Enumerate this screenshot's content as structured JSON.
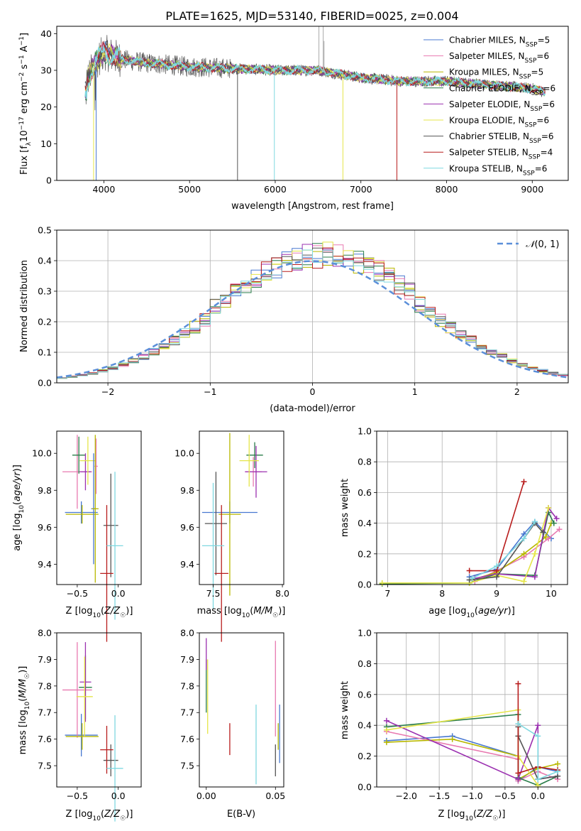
{
  "figure": {
    "title": "PLATE=1625, MJD=53140, FIBERID=0025, z=0.004"
  },
  "colors": {
    "chabrier_miles": "#4878d0",
    "salpeter_miles": "#e879b0",
    "kroupa_miles": "#b8b800",
    "chabrier_elodie": "#2a7d4a",
    "salpeter_elodie": "#9b30b0",
    "kroupa_elodie": "#e5e549",
    "chabrier_stelib": "#555555",
    "salpeter_stelib": "#b81c1c",
    "kroupa_stelib": "#7fd8e0",
    "normal_curve": "#5b8fd9"
  },
  "chart_data": [
    {
      "id": "spectrum",
      "type": "line",
      "xlabel": "wavelength [Angstrom, rest frame]",
      "ylabel": "Flux [f_λ 10^-17 erg cm^-2 s^-1 A^-1]",
      "xlim": [
        3450,
        9420
      ],
      "ylim": [
        0,
        42
      ],
      "xticks": [
        4000,
        5000,
        6000,
        7000,
        8000,
        9000
      ],
      "yticks": [
        0,
        10,
        20,
        30,
        40
      ],
      "grid": false,
      "legend_position": "top-right",
      "series": [
        {
          "name": "Chabrier MILES, N",
          "sub": "SSP",
          "suffix": "=5",
          "color_key": "chabrier_miles"
        },
        {
          "name": "Salpeter MILES, N",
          "sub": "SSP",
          "suffix": "=6",
          "color_key": "salpeter_miles"
        },
        {
          "name": "Kroupa MILES, N",
          "sub": "SSP",
          "suffix": "=5",
          "color_key": "kroupa_miles"
        },
        {
          "name": "Chabrier ELODIE, N",
          "sub": "SSP",
          "suffix": "=6",
          "color_key": "chabrier_elodie"
        },
        {
          "name": "Salpeter ELODIE, N",
          "sub": "SSP",
          "suffix": "=6",
          "color_key": "salpeter_elodie"
        },
        {
          "name": "Kroupa ELODIE, N",
          "sub": "SSP",
          "suffix": "=6",
          "color_key": "kroupa_elodie"
        },
        {
          "name": "Chabrier STELIB, N",
          "sub": "SSP",
          "suffix": "=6",
          "color_key": "chabrier_stelib"
        },
        {
          "name": "Salpeter STELIB, N",
          "sub": "SSP",
          "suffix": "=4",
          "color_key": "salpeter_stelib"
        },
        {
          "name": "Kroupa STELIB, N",
          "sub": "SSP",
          "suffix": "=6",
          "color_key": "kroupa_stelib"
        }
      ],
      "continuum": [
        [
          3800,
          27
        ],
        [
          3900,
          32
        ],
        [
          4000,
          35
        ],
        [
          4200,
          33
        ],
        [
          4500,
          32
        ],
        [
          5000,
          31
        ],
        [
          5500,
          30.5
        ],
        [
          6000,
          30
        ],
        [
          6500,
          30
        ],
        [
          7000,
          28
        ],
        [
          7500,
          27
        ],
        [
          8000,
          27
        ],
        [
          8500,
          26
        ],
        [
          9000,
          25
        ],
        [
          9150,
          24
        ]
      ],
      "drop_lines": [
        [
          3880,
          0
        ],
        [
          3910,
          0
        ],
        [
          5560,
          0
        ],
        [
          5990,
          0
        ],
        [
          6790,
          0
        ],
        [
          7420,
          0
        ]
      ],
      "spikes": [
        [
          6510,
          42
        ],
        [
          6560,
          42
        ],
        [
          6570,
          38
        ]
      ]
    },
    {
      "id": "residuals",
      "type": "histogram",
      "xlabel": "(data-model)/error",
      "ylabel": "Normed distribution",
      "xlim": [
        -2.5,
        2.5
      ],
      "ylim": [
        0,
        0.5
      ],
      "xticks": [
        -2,
        -1,
        0,
        1,
        2
      ],
      "yticks": [
        0,
        0.1,
        0.2,
        0.3,
        0.4,
        0.5
      ],
      "grid": true,
      "legend_position": "top-right",
      "legend": "N(0,1)",
      "bin_width": 0.1
    },
    {
      "id": "age_vs_Z",
      "type": "scatter",
      "xlabel": "Z [log10(Z/Z☉)]",
      "ylabel": "age [log10(age/yr)]",
      "xlim": [
        -0.75,
        0.28
      ],
      "ylim": [
        9.29,
        10.12
      ],
      "xticks": [
        -0.5,
        0.0
      ],
      "yticks": [
        9.4,
        9.6,
        9.8,
        10.0
      ],
      "grid": false,
      "points": [
        {
          "color_key": "chabrier_miles",
          "x": -0.45,
          "xerr": 0.2,
          "y": 9.68,
          "yerr": 0.06
        },
        {
          "color_key": "salpeter_miles",
          "x": -0.5,
          "xerr": 0.18,
          "y": 9.9,
          "yerr": 0.2
        },
        {
          "color_key": "kroupa_miles",
          "x": -0.44,
          "xerr": 0.2,
          "y": 9.67,
          "yerr": 0.05
        },
        {
          "color_key": "chabrier_elodie",
          "x": -0.48,
          "xerr": 0.08,
          "y": 9.99,
          "yerr": 0.1
        },
        {
          "color_key": "salpeter_elodie",
          "x": -0.4,
          "xerr": 0.07,
          "y": 9.9,
          "yerr": 0.1
        },
        {
          "color_key": "kroupa_elodie",
          "x": -0.37,
          "xerr": 0.1,
          "y": 9.96,
          "yerr": 0.13
        },
        {
          "color_key": "chabrier_stelib",
          "x": -0.09,
          "xerr": 0.09,
          "y": 9.61,
          "yerr": 0.28
        },
        {
          "color_key": "salpeter_stelib",
          "x": -0.14,
          "xerr": 0.08,
          "y": 9.35,
          "yerr": 0.37
        },
        {
          "color_key": "kroupa_stelib",
          "x": -0.04,
          "xerr": 0.1,
          "y": 9.5,
          "yerr": 0.4
        },
        {
          "color_key": "chabrier_miles",
          "x": -0.3,
          "xerr": 0.03,
          "y": 9.7,
          "yerr": 0.3
        },
        {
          "color_key": "salpeter_miles",
          "x": -0.27,
          "xerr": 0.02,
          "y": 9.93,
          "yerr": 0.15
        },
        {
          "color_key": "kroupa_miles",
          "x": -0.28,
          "xerr": 0.04,
          "y": 9.7,
          "yerr": 0.4
        }
      ]
    },
    {
      "id": "age_vs_mass",
      "type": "scatter",
      "xlabel": "mass [log10(M/M☉)]",
      "ylabel": "",
      "xlim": [
        7.4,
        8.01
      ],
      "ylim": [
        9.29,
        10.12
      ],
      "xticks": [
        7.5,
        8.0
      ],
      "yticks": [
        9.4,
        9.6,
        9.8,
        10.0
      ],
      "grid": false,
      "points": [
        {
          "color_key": "chabrier_miles",
          "x": 7.62,
          "xerr": 0.2,
          "y": 9.68,
          "yerr": 0.06
        },
        {
          "color_key": "salpeter_miles",
          "x": 7.79,
          "xerr": 0.06,
          "y": 9.9,
          "yerr": 0.08
        },
        {
          "color_key": "kroupa_miles",
          "x": 7.62,
          "xerr": 0.08,
          "y": 9.67,
          "yerr": 0.44
        },
        {
          "color_key": "chabrier_elodie",
          "x": 7.8,
          "xerr": 0.06,
          "y": 9.99,
          "yerr": 0.07
        },
        {
          "color_key": "salpeter_elodie",
          "x": 7.81,
          "xerr": 0.08,
          "y": 9.9,
          "yerr": 0.14
        },
        {
          "color_key": "kroupa_elodie",
          "x": 7.76,
          "xerr": 0.07,
          "y": 9.96,
          "yerr": 0.14
        },
        {
          "color_key": "chabrier_stelib",
          "x": 7.52,
          "xerr": 0.08,
          "y": 9.62,
          "yerr": 0.28
        },
        {
          "color_key": "salpeter_stelib",
          "x": 7.56,
          "xerr": 0.05,
          "y": 9.35,
          "yerr": 0.37
        },
        {
          "color_key": "kroupa_stelib",
          "x": 7.5,
          "xerr": 0.08,
          "y": 9.5,
          "yerr": 0.34
        }
      ]
    },
    {
      "id": "mass_weight_vs_age",
      "type": "line",
      "xlabel": "age [log10(age/yr)]",
      "ylabel": "mass weight",
      "xlim": [
        6.8,
        10.3
      ],
      "ylim": [
        0,
        1.0
      ],
      "xticks": [
        7,
        8,
        9,
        10
      ],
      "yticks": [
        0.0,
        0.2,
        0.4,
        0.6,
        0.8,
        1.0
      ],
      "grid": true,
      "series": [
        {
          "color_key": "chabrier_miles",
          "points": [
            [
              8.5,
              0.05
            ],
            [
              9.0,
              0.1
            ],
            [
              9.5,
              0.33
            ],
            [
              9.7,
              0.41
            ],
            [
              10.0,
              0.3
            ]
          ]
        },
        {
          "color_key": "salpeter_miles",
          "points": [
            [
              8.6,
              0.02
            ],
            [
              9.0,
              0.09
            ],
            [
              9.5,
              0.18
            ],
            [
              9.95,
              0.3
            ],
            [
              10.15,
              0.36
            ]
          ]
        },
        {
          "color_key": "kroupa_miles",
          "points": [
            [
              8.55,
              0.03
            ],
            [
              9.0,
              0.08
            ],
            [
              9.5,
              0.2
            ],
            [
              9.9,
              0.31
            ],
            [
              10.0,
              0.4
            ]
          ]
        },
        {
          "color_key": "chabrier_elodie",
          "points": [
            [
              6.9,
              0.005
            ],
            [
              8.5,
              0.01
            ],
            [
              9.0,
              0.07
            ],
            [
              9.7,
              0.06
            ],
            [
              9.95,
              0.47
            ],
            [
              10.05,
              0.4
            ]
          ]
        },
        {
          "color_key": "salpeter_elodie",
          "points": [
            [
              8.6,
              0.04
            ],
            [
              9.0,
              0.07
            ],
            [
              9.7,
              0.05
            ],
            [
              9.95,
              0.5
            ],
            [
              10.1,
              0.43
            ]
          ]
        },
        {
          "color_key": "kroupa_elodie",
          "points": [
            [
              6.9,
              0.01
            ],
            [
              8.5,
              0.01
            ],
            [
              9.0,
              0.06
            ],
            [
              9.5,
              0.02
            ],
            [
              9.7,
              0.2
            ],
            [
              9.95,
              0.5
            ]
          ]
        },
        {
          "color_key": "chabrier_stelib",
          "points": [
            [
              8.5,
              0.03
            ],
            [
              9.0,
              0.05
            ],
            [
              9.7,
              0.4
            ],
            [
              9.85,
              0.34
            ]
          ]
        },
        {
          "color_key": "salpeter_stelib",
          "points": [
            [
              8.5,
              0.09
            ],
            [
              9.0,
              0.09
            ],
            [
              9.5,
              0.67
            ]
          ]
        },
        {
          "color_key": "kroupa_stelib",
          "points": [
            [
              8.55,
              0.04
            ],
            [
              9.0,
              0.12
            ],
            [
              9.5,
              0.3
            ],
            [
              9.7,
              0.41
            ]
          ]
        }
      ]
    },
    {
      "id": "mass_vs_Z",
      "type": "scatter",
      "xlabel": "Z [log10(Z/Z☉)]",
      "ylabel": "mass [log10(M/M☉)]",
      "xlim": [
        -0.75,
        0.28
      ],
      "ylim": [
        7.42,
        8.0
      ],
      "xticks": [
        -0.5,
        0.0
      ],
      "yticks": [
        7.5,
        7.6,
        7.7,
        7.8,
        7.9,
        8.0
      ],
      "grid": false,
      "points": [
        {
          "color_key": "chabrier_miles",
          "x": -0.45,
          "xerr": 0.2,
          "y": 7.615,
          "yerr": 0.08
        },
        {
          "color_key": "salpeter_miles",
          "x": -0.5,
          "xerr": 0.18,
          "y": 7.785,
          "yerr": 0.18
        },
        {
          "color_key": "kroupa_miles",
          "x": -0.44,
          "xerr": 0.2,
          "y": 7.61,
          "yerr": 0.05
        },
        {
          "color_key": "chabrier_elodie",
          "x": -0.4,
          "xerr": 0.08,
          "y": 7.795,
          "yerr": 0.12
        },
        {
          "color_key": "salpeter_elodie",
          "x": -0.4,
          "xerr": 0.07,
          "y": 7.815,
          "yerr": 0.15
        },
        {
          "color_key": "kroupa_elodie",
          "x": -0.41,
          "xerr": 0.1,
          "y": 7.76,
          "yerr": 0.15
        },
        {
          "color_key": "chabrier_stelib",
          "x": -0.09,
          "xerr": 0.09,
          "y": 7.52,
          "yerr": 0.06
        },
        {
          "color_key": "salpeter_stelib",
          "x": -0.14,
          "xerr": 0.08,
          "y": 7.56,
          "yerr": 0.09
        },
        {
          "color_key": "kroupa_stelib",
          "x": -0.04,
          "xerr": 0.1,
          "y": 7.49,
          "yerr": 0.2
        }
      ]
    },
    {
      "id": "mass_vs_ebv",
      "type": "scatter",
      "xlabel": "E(B-V)",
      "ylabel": "",
      "xlim": [
        -0.005,
        0.056
      ],
      "ylim": [
        7.42,
        8.0
      ],
      "xticks": [
        0.0,
        0.05
      ],
      "yticks": [
        7.5,
        7.6,
        7.7,
        7.8,
        7.9,
        8.0
      ],
      "grid": false,
      "points": [
        {
          "color_key": "chabrier_miles",
          "x": 0.053,
          "y": 7.62,
          "yerr": 0.11
        },
        {
          "color_key": "salpeter_miles",
          "x": 0.05,
          "y": 7.79,
          "yerr": 0.18
        },
        {
          "color_key": "kroupa_miles",
          "x": 0.052,
          "y": 7.61,
          "yerr": 0.05
        },
        {
          "color_key": "chabrier_elodie",
          "x": 0.0,
          "y": 7.8,
          "yerr": 0.1
        },
        {
          "color_key": "salpeter_elodie",
          "x": 0.0,
          "y": 7.92,
          "yerr": 0.06
        },
        {
          "color_key": "kroupa_elodie",
          "x": 0.001,
          "y": 7.76,
          "yerr": 0.14
        },
        {
          "color_key": "chabrier_stelib",
          "x": 0.05,
          "y": 7.52,
          "yerr": 0.06
        },
        {
          "color_key": "salpeter_stelib",
          "x": 0.017,
          "y": 7.6,
          "yerr": 0.06
        },
        {
          "color_key": "kroupa_stelib",
          "x": 0.036,
          "y": 7.58,
          "yerr": 0.15
        }
      ]
    },
    {
      "id": "mass_weight_vs_Z",
      "type": "line",
      "xlabel": "Z [log10(Z/Z☉)]",
      "ylabel": "mass weight",
      "xlim": [
        -2.45,
        0.45
      ],
      "ylim": [
        0,
        1.0
      ],
      "xticks": [
        -2.0,
        -1.5,
        -1.0,
        -0.5,
        0.0
      ],
      "yticks": [
        0.0,
        0.2,
        0.4,
        0.6,
        0.8,
        1.0
      ],
      "grid": true,
      "series": [
        {
          "color_key": "chabrier_miles",
          "points": [
            [
              -2.3,
              0.3
            ],
            [
              -1.3,
              0.33
            ],
            [
              -0.3,
              0.2
            ],
            [
              -0.3,
              0.04
            ],
            [
              0.0,
              0.13
            ],
            [
              0.3,
              0.1
            ]
          ]
        },
        {
          "color_key": "salpeter_miles",
          "points": [
            [
              -2.3,
              0.36
            ],
            [
              -0.3,
              0.18
            ],
            [
              -0.3,
              0.04
            ],
            [
              0.0,
              0.1
            ],
            [
              0.3,
              0.05
            ]
          ]
        },
        {
          "color_key": "kroupa_miles",
          "points": [
            [
              -2.3,
              0.29
            ],
            [
              -1.3,
              0.31
            ],
            [
              -0.3,
              0.2
            ],
            [
              -0.3,
              0.05
            ],
            [
              0.0,
              0.12
            ],
            [
              0.3,
              0.15
            ]
          ]
        },
        {
          "color_key": "chabrier_elodie",
          "points": [
            [
              -2.3,
              0.39
            ],
            [
              -0.3,
              0.47
            ],
            [
              -0.3,
              0.06
            ],
            [
              0.0,
              0.01
            ],
            [
              0.3,
              0.07
            ]
          ]
        },
        {
          "color_key": "salpeter_elodie",
          "points": [
            [
              -2.3,
              0.43
            ],
            [
              -0.3,
              0.05
            ],
            [
              0.0,
              0.4
            ],
            [
              0.0,
              0.05
            ],
            [
              0.3,
              0.07
            ]
          ]
        },
        {
          "color_key": "kroupa_elodie",
          "points": [
            [
              -2.3,
              0.37
            ],
            [
              -0.3,
              0.5
            ],
            [
              -0.3,
              0.2
            ],
            [
              0.0,
              0.01
            ]
          ]
        },
        {
          "color_key": "chabrier_stelib",
          "points": [
            [
              -0.3,
              0.39
            ],
            [
              -0.3,
              0.33
            ],
            [
              0.0,
              0.05
            ],
            [
              0.3,
              0.07
            ]
          ]
        },
        {
          "color_key": "salpeter_stelib",
          "points": [
            [
              -0.3,
              0.67
            ],
            [
              -0.3,
              0.09
            ],
            [
              0.0,
              0.13
            ],
            [
              0.3,
              0.11
            ]
          ]
        },
        {
          "color_key": "kroupa_stelib",
          "points": [
            [
              -0.3,
              0.41
            ],
            [
              0.0,
              0.33
            ],
            [
              0.0,
              0.05
            ],
            [
              0.3,
              0.1
            ]
          ]
        }
      ]
    }
  ]
}
